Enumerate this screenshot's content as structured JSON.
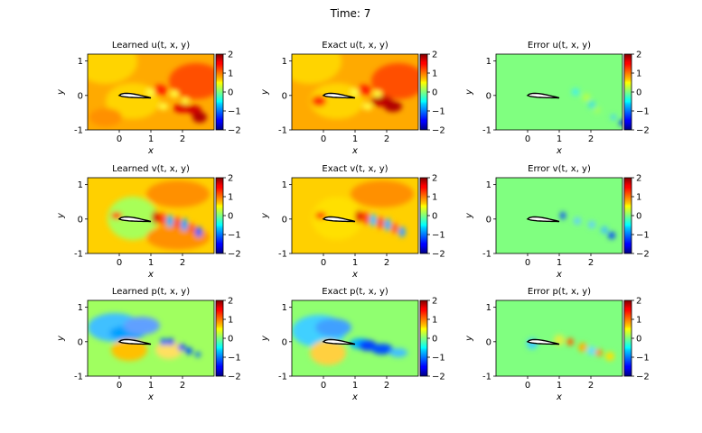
{
  "figure": {
    "suptitle": "Time: 7"
  },
  "colors": {
    "colormap": "jet",
    "airfoil_fill": "#ffffff",
    "airfoil_stroke": "#000000"
  },
  "chart_data": [
    {
      "type": "heatmap",
      "field": "u",
      "kind": "learned",
      "title": "Learned u(t, x, y)",
      "xlabel": "x",
      "ylabel": "y",
      "xlim": [
        -1,
        3
      ],
      "ylim": [
        -1,
        1.2
      ],
      "xticks": [
        "0",
        "1",
        "2"
      ],
      "yticks": [
        "-1",
        "0",
        "1"
      ],
      "colorbar": {
        "min": -2,
        "max": 2,
        "ticks": [
          "2",
          "1",
          "0",
          "−1",
          "−2"
        ]
      }
    },
    {
      "type": "heatmap",
      "field": "u",
      "kind": "exact",
      "title": "Exact u(t, x, y)",
      "xlabel": "x",
      "ylabel": "y",
      "xlim": [
        -1,
        3
      ],
      "ylim": [
        -1,
        1.2
      ],
      "xticks": [
        "0",
        "1",
        "2"
      ],
      "yticks": [
        "-1",
        "0",
        "1"
      ],
      "colorbar": {
        "min": -2,
        "max": 2,
        "ticks": [
          "2",
          "1",
          "0",
          "−1",
          "−2"
        ]
      }
    },
    {
      "type": "heatmap",
      "field": "u",
      "kind": "error",
      "title": "Error u(t, x, y)",
      "xlabel": "x",
      "ylabel": "y",
      "xlim": [
        -1,
        3
      ],
      "ylim": [
        -1,
        1.2
      ],
      "xticks": [
        "0",
        "1",
        "2"
      ],
      "yticks": [
        "-1",
        "0",
        "1"
      ],
      "colorbar": {
        "min": -2,
        "max": 2,
        "ticks": [
          "2",
          "1",
          "0",
          "−1",
          "−2"
        ]
      }
    },
    {
      "type": "heatmap",
      "field": "v",
      "kind": "learned",
      "title": "Learned v(t, x, y)",
      "xlabel": "x",
      "ylabel": "y",
      "xlim": [
        -1,
        3
      ],
      "ylim": [
        -1,
        1.2
      ],
      "xticks": [
        "0",
        "1",
        "2"
      ],
      "yticks": [
        "-1",
        "0",
        "1"
      ],
      "colorbar": {
        "min": -2,
        "max": 2,
        "ticks": [
          "2",
          "1",
          "0",
          "−1",
          "−2"
        ]
      }
    },
    {
      "type": "heatmap",
      "field": "v",
      "kind": "exact",
      "title": "Exact v(t, x, y)",
      "xlabel": "x",
      "ylabel": "y",
      "xlim": [
        -1,
        3
      ],
      "ylim": [
        -1,
        1.2
      ],
      "xticks": [
        "0",
        "1",
        "2"
      ],
      "yticks": [
        "-1",
        "0",
        "1"
      ],
      "colorbar": {
        "min": -2,
        "max": 2,
        "ticks": [
          "2",
          "1",
          "0",
          "−1",
          "−2"
        ]
      }
    },
    {
      "type": "heatmap",
      "field": "v",
      "kind": "error",
      "title": "Error v(t, x, y)",
      "xlabel": "x",
      "ylabel": "y",
      "xlim": [
        -1,
        3
      ],
      "ylim": [
        -1,
        1.2
      ],
      "xticks": [
        "0",
        "1",
        "2"
      ],
      "yticks": [
        "-1",
        "0",
        "1"
      ],
      "colorbar": {
        "min": -2,
        "max": 2,
        "ticks": [
          "2",
          "1",
          "0",
          "−1",
          "−2"
        ]
      }
    },
    {
      "type": "heatmap",
      "field": "p",
      "kind": "learned",
      "title": "Learned p(t, x, y)",
      "xlabel": "x",
      "ylabel": "y",
      "xlim": [
        -1,
        3
      ],
      "ylim": [
        -1,
        1.2
      ],
      "xticks": [
        "0",
        "1",
        "2"
      ],
      "yticks": [
        "-1",
        "0",
        "1"
      ],
      "colorbar": {
        "min": -2,
        "max": 2,
        "ticks": [
          "2",
          "1",
          "0",
          "−1",
          "−2"
        ]
      }
    },
    {
      "type": "heatmap",
      "field": "p",
      "kind": "exact",
      "title": "Exact p(t, x, y)",
      "xlabel": "x",
      "ylabel": "y",
      "xlim": [
        -1,
        3
      ],
      "ylim": [
        -1,
        1.2
      ],
      "xticks": [
        "0",
        "1",
        "2"
      ],
      "yticks": [
        "-1",
        "0",
        "1"
      ],
      "colorbar": {
        "min": -2,
        "max": 2,
        "ticks": [
          "2",
          "1",
          "0",
          "−1",
          "−2"
        ]
      }
    },
    {
      "type": "heatmap",
      "field": "p",
      "kind": "error",
      "title": "Error p(t, x, y)",
      "xlabel": "x",
      "ylabel": "y",
      "xlim": [
        -1,
        3
      ],
      "ylim": [
        -1,
        1.2
      ],
      "xticks": [
        "0",
        "1",
        "2"
      ],
      "yticks": [
        "-1",
        "0",
        "1"
      ],
      "colorbar": {
        "min": -2,
        "max": 2,
        "ticks": [
          "2",
          "1",
          "0",
          "−1",
          "−2"
        ]
      }
    }
  ]
}
